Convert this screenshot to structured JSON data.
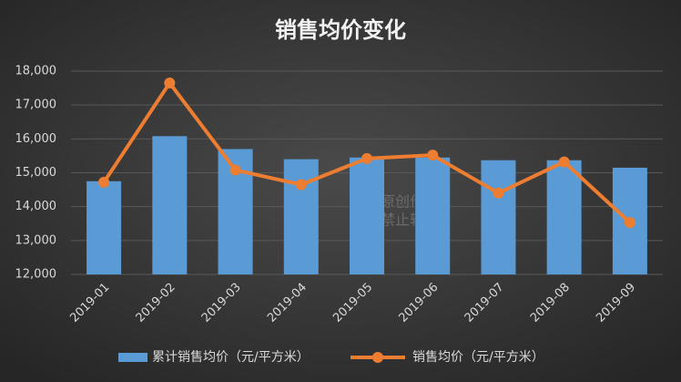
{
  "chart_data": {
    "type": "combo",
    "title": "销售均价变化",
    "categories": [
      "2019-01",
      "2019-02",
      "2019-03",
      "2019-04",
      "2019-05",
      "2019-06",
      "2019-07",
      "2019-08",
      "2019-09"
    ],
    "series": [
      {
        "name": "累计销售均价（元/平方米）",
        "type": "bar",
        "color": "#5b9bd5",
        "values": [
          14750,
          16080,
          15700,
          15400,
          15450,
          15450,
          15370,
          15370,
          15150
        ]
      },
      {
        "name": "销售均价（元/平方米）",
        "type": "line",
        "color": "#ed7d31",
        "values": [
          14720,
          17650,
          15080,
          14650,
          15420,
          15520,
          14400,
          15320,
          13530
        ]
      }
    ],
    "ylim": [
      12000,
      18000
    ],
    "yticks": [
      {
        "value": 12000,
        "label": "12,000"
      },
      {
        "value": 13000,
        "label": "13,000"
      },
      {
        "value": 14000,
        "label": "14,000"
      },
      {
        "value": 15000,
        "label": "15,000"
      },
      {
        "value": 16000,
        "label": "16,000"
      },
      {
        "value": 17000,
        "label": "17,000"
      },
      {
        "value": 18000,
        "label": "18,000"
      }
    ],
    "grid": true,
    "annotations": [
      "原创作品",
      "禁止转载"
    ]
  }
}
